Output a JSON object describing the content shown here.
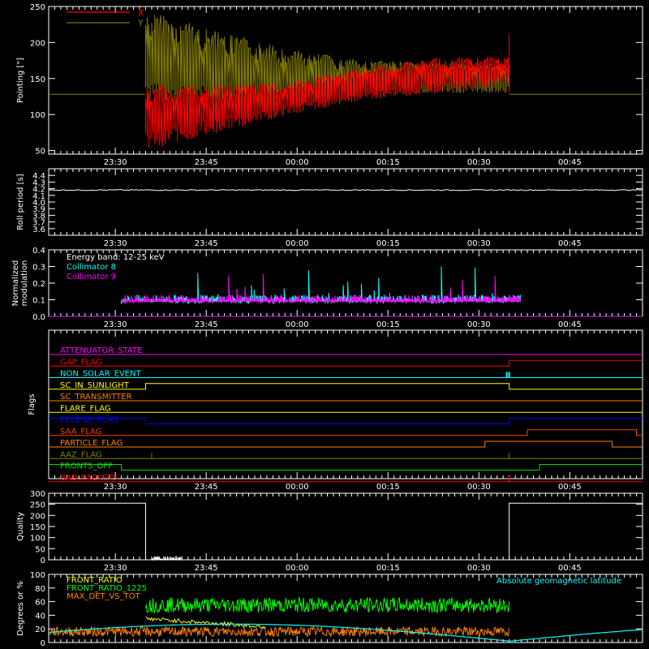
{
  "time_ticks": [
    "23:30",
    "23:45",
    "00:00",
    "00:15",
    "00:30",
    "00:45"
  ],
  "colors": {
    "red": "#ff0000",
    "olive": "#807a00",
    "white": "#ffffff",
    "cyan": "#00ffff",
    "magenta": "#ff00ff",
    "yellow": "#ffff00",
    "blue": "#0000ff",
    "orange": "#ff8000",
    "coral": "#ff4000",
    "green": "#00ff00",
    "darkolive": "#808000",
    "lime": "#00e000"
  },
  "chart_data": [
    {
      "id": "pointing",
      "type": "line",
      "ylabel": "Pointing [\"]",
      "ylim": [
        45,
        250
      ],
      "yticks": [
        50,
        100,
        150,
        200,
        250
      ],
      "legend": {
        "placement": "top-left",
        "entries": [
          {
            "name": "X",
            "color": "#ff0000"
          },
          {
            "name": "Y",
            "color": "#807a00"
          }
        ]
      },
      "series": [
        {
          "name": "X",
          "color": "#ff0000",
          "t_start": "23:35",
          "t_end": "00:35",
          "envelope_low": [
            50,
            75,
            100,
            120,
            130,
            140
          ],
          "envelope_high": [
            140,
            140,
            145,
            165,
            178,
            180
          ],
          "baseline": 128
        },
        {
          "name": "Y",
          "color": "#807a00",
          "t_start": "23:35",
          "t_end": "00:35",
          "envelope_low": [
            120,
            105,
            110,
            125,
            130,
            130
          ],
          "envelope_high": [
            245,
            215,
            190,
            175,
            172,
            170
          ],
          "baseline": 128
        }
      ]
    },
    {
      "id": "roll",
      "type": "line",
      "ylabel": "Roll period [s]",
      "ylim": [
        3.5,
        4.5
      ],
      "yticks": [
        3.6,
        3.7,
        3.8,
        3.9,
        4.0,
        4.1,
        4.2,
        4.3,
        4.4
      ],
      "series": [
        {
          "name": "",
          "color": "#ffffff",
          "value": 4.18
        }
      ]
    },
    {
      "id": "modulation",
      "type": "line",
      "ylabel": [
        "Normalized",
        "modulation"
      ],
      "ylim": [
        0,
        0.4
      ],
      "yticks": [
        0.0,
        0.1,
        0.2,
        0.3,
        0.4
      ],
      "legend": {
        "placement": "top-left",
        "entries": [
          {
            "name": "Energy band: 12-25 keV",
            "color": "#ffffff"
          },
          {
            "name": "Collimator 8",
            "color": "#00ffff"
          },
          {
            "name": "Collimator 9",
            "color": "#ff00ff"
          }
        ]
      },
      "series": [
        {
          "name": "Collimator 8",
          "color": "#00ffff",
          "t_start": "23:31",
          "t_end": "00:37",
          "typical": 0.1,
          "peak": 0.32
        },
        {
          "name": "Collimator 9",
          "color": "#ff00ff",
          "t_start": "23:31",
          "t_end": "00:37",
          "typical": 0.1,
          "peak": 0.28
        }
      ]
    },
    {
      "id": "flags",
      "type": "line",
      "ylabel": "Flags",
      "flags": [
        {
          "name": "ATTENUATOR_STATE",
          "color": "#ff00ff"
        },
        {
          "name": "GAP_FLAG",
          "color": "#ff0000"
        },
        {
          "name": "NON_SOLAR_EVENT",
          "color": "#00ffff"
        },
        {
          "name": "SC_IN_SUNLIGHT",
          "color": "#ffff00"
        },
        {
          "name": "SC_TRANSMITTER",
          "color": "#ff8000"
        },
        {
          "name": "FLARE_FLAG",
          "color": "#ffff00"
        },
        {
          "name": "ECLIPSE_FLAG",
          "color": "#0000ff"
        },
        {
          "name": "SAA_FLAG",
          "color": "#ff4000"
        },
        {
          "name": "PARTICLE_FLAG",
          "color": "#ff8000"
        },
        {
          "name": "AAZ_FLAG",
          "color": "#808000"
        },
        {
          "name": "FRONTS_OFF",
          "color": "#00e000"
        },
        {
          "name": "BAD_PACKETS",
          "color": "#ff0000"
        }
      ]
    },
    {
      "id": "quality",
      "type": "line",
      "ylabel": "Quality",
      "ylim": [
        0,
        300
      ],
      "yticks": [
        0,
        50,
        100,
        150,
        200,
        250,
        300
      ],
      "series": [
        {
          "name": "",
          "color": "#ffffff",
          "high": 255,
          "gap_start": "23:35",
          "gap_end": "00:35"
        }
      ]
    },
    {
      "id": "geomag",
      "type": "line",
      "ylabel": "Degrees or %",
      "ylim": [
        0,
        100
      ],
      "yticks": [
        0,
        20,
        40,
        60,
        80,
        100
      ],
      "legend": {
        "placement": "top",
        "entries": [
          {
            "name": "FRONT_RATIO",
            "color": "#ffff00"
          },
          {
            "name": "FRONT_RATIO_1225",
            "color": "#00ff00"
          },
          {
            "name": "MAX_DET_VS_TOT",
            "color": "#ff8000"
          },
          {
            "name": "Absolute geomagnetic latitude",
            "color": "#00ffff"
          }
        ]
      },
      "series": [
        {
          "name": "FRONT_RATIO_1225",
          "color": "#00ff00",
          "t_start": "23:35",
          "t_end": "00:35",
          "typical": 55
        },
        {
          "name": "MAX_DET_VS_TOT",
          "color": "#ff8000",
          "typical": 18
        },
        {
          "name": "FRONT_RATIO",
          "color": "#ffff00",
          "t_start": "23:35",
          "t_end": "23:55",
          "typical": 35
        },
        {
          "name": "Absolute geomagnetic latitude",
          "color": "#00ffff",
          "min": 2,
          "max": 27
        }
      ]
    }
  ]
}
